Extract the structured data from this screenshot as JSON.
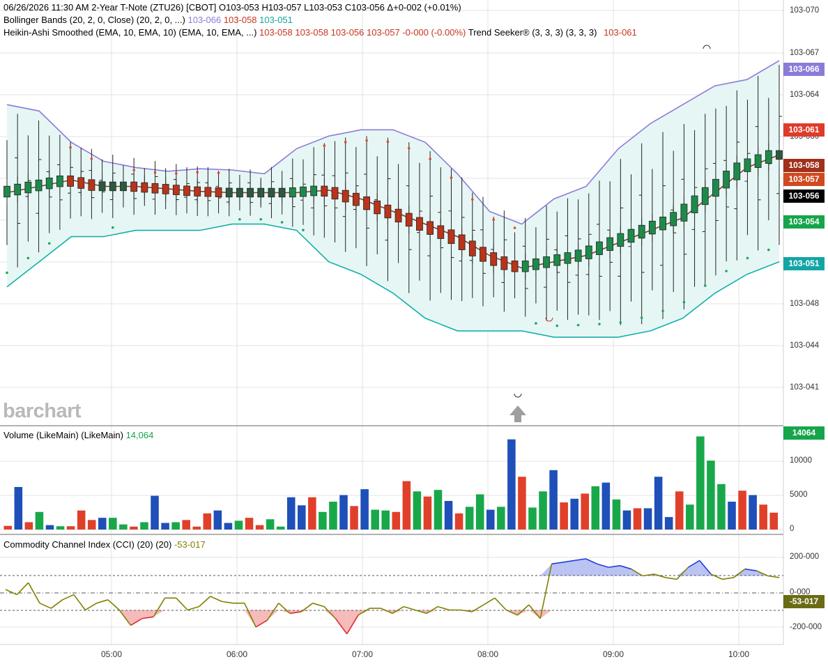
{
  "header": {
    "line1": "06/26/2026  11:30 AM 2-Year T-Note (ZTU26) [CBOT]  O103-053  H103-057  L103-053  C103-056  Δ+0-002 (+0.01%)",
    "bb_label": "Bollinger Bands (20, 2, 0, Close)  (20, 2, 0, ...)",
    "bb_upper": "103-066",
    "bb_mid": "103-058",
    "bb_lower": "103-051",
    "ha_label": "Heikin-Ashi Smoothed (EMA, 10, EMA, 10)  (EMA, 10, EMA, ...)",
    "ha_values": "103-058  103-058  103-056  103-057  -0-000 (-0.00%)",
    "ts_label": "Trend Seeker® (3, 3, 3)  (3, 3, 3)",
    "ts_value": "103-061"
  },
  "watermark": "barchart",
  "price_axis": {
    "ticks": [
      "103-070",
      "103-067",
      "103-064",
      "103-060",
      "103-057",
      "103-054",
      "103-051",
      "103-048",
      "103-044",
      "103-041"
    ],
    "boxes": [
      {
        "label": "103-066",
        "color": "#8a7cd8"
      },
      {
        "label": "103-061",
        "color": "#e03a2a"
      },
      {
        "label": "103-058",
        "color": "#a0301a"
      },
      {
        "label": "103-057",
        "color": "#d04a20"
      },
      {
        "label": "103-056",
        "color": "#000000"
      },
      {
        "label": "103-054",
        "color": "#16a54a"
      },
      {
        "label": "103-051",
        "color": "#13a5a5"
      }
    ]
  },
  "volume_panel": {
    "label": "Volume (LikeMain)  (LikeMain)",
    "value": "14,064",
    "box": "14064",
    "ticks": [
      "10000",
      "5000",
      "0"
    ]
  },
  "cci_panel": {
    "label": "Commodity Channel Index (CCI) (20)  (20)",
    "value": "-53-017",
    "box": "-53-017",
    "ticks": [
      "200-000",
      "0-000",
      "-200-000"
    ]
  },
  "x_axis": [
    "05:00",
    "06:00",
    "07:00",
    "08:00",
    "09:00",
    "10:00"
  ],
  "chart_data": [
    {
      "type": "line",
      "title": "2-Year T-Note (ZTU26) price with Bollinger Bands",
      "x": [
        "04:15",
        "04:30",
        "04:45",
        "05:00",
        "05:15",
        "05:30",
        "05:45",
        "06:00",
        "06:15",
        "06:30",
        "06:45",
        "07:00",
        "07:15",
        "07:30",
        "07:45",
        "08:00",
        "08:15",
        "08:30",
        "08:45",
        "09:00",
        "09:15",
        "09:30",
        "09:45",
        "10:00",
        "10:15"
      ],
      "series": [
        {
          "name": "Bollinger upper",
          "values": [
            103.0625,
            103.062,
            103.0595,
            103.058,
            103.0575,
            103.0572,
            103.0574,
            103.0573,
            103.057,
            103.059,
            103.06,
            103.0605,
            103.0605,
            103.0595,
            103.057,
            103.054,
            103.053,
            103.055,
            103.056,
            103.059,
            103.061,
            103.0625,
            103.064,
            103.0645,
            103.066
          ]
        },
        {
          "name": "Bollinger middle",
          "values": [
            103.0555,
            103.056,
            103.0565,
            103.056,
            103.056,
            103.0558,
            103.0556,
            103.0555,
            103.0555,
            103.0555,
            103.0557,
            103.055,
            103.054,
            103.053,
            103.052,
            103.0505,
            103.0495,
            103.05,
            103.0505,
            103.0515,
            103.0525,
            103.0535,
            103.0555,
            103.0575,
            103.0585
          ]
        },
        {
          "name": "Bollinger lower",
          "values": [
            103.048,
            103.05,
            103.052,
            103.052,
            103.0525,
            103.0525,
            103.0525,
            103.053,
            103.053,
            103.0525,
            103.05,
            103.049,
            103.0475,
            103.0455,
            103.0445,
            103.0445,
            103.0445,
            103.044,
            103.044,
            103.044,
            103.0445,
            103.0455,
            103.0475,
            103.049,
            103.05
          ]
        }
      ],
      "ylim": [
        103.04,
        103.07
      ]
    },
    {
      "type": "bar",
      "title": "Volume (LikeMain)",
      "values": [
        500,
        5800,
        1000,
        2400,
        600,
        450,
        450,
        2600,
        1300,
        1600,
        1600,
        700,
        400,
        1000,
        4600,
        900,
        1000,
        1300,
        400,
        2200,
        2600,
        900,
        1200,
        1600,
        600,
        1400,
        400,
        4400,
        3300,
        4400,
        2400,
        3800,
        4700,
        3200,
        5500,
        2700,
        2600,
        2400,
        6600,
        5200,
        4500,
        5400,
        3900,
        2200,
        3100,
        4800,
        2700,
        3100,
        12300,
        7200,
        3000,
        5200,
        8100,
        3700,
        4200,
        4900,
        5900,
        6400,
        4100,
        2600,
        2900,
        2900,
        7200,
        1700,
        5200,
        3400,
        12700,
        9400,
        6200,
        3800,
        5300,
        4700,
        3400,
        2300
      ],
      "ylim": [
        0,
        14064
      ]
    },
    {
      "type": "line",
      "title": "Commodity Channel Index (CCI) (20)",
      "values": [
        20,
        -10,
        60,
        -60,
        -90,
        -40,
        -10,
        -100,
        -60,
        -40,
        -100,
        -190,
        -150,
        -140,
        -30,
        -30,
        -100,
        -80,
        -20,
        -50,
        -60,
        -60,
        -200,
        -160,
        -60,
        -120,
        -110,
        -60,
        -80,
        -150,
        -240,
        -130,
        -90,
        -90,
        -120,
        -80,
        -100,
        -120,
        -80,
        -100,
        -100,
        -110,
        -70,
        -30,
        -100,
        -130,
        -70,
        -150,
        170,
        180,
        190,
        200,
        170,
        150,
        160,
        140,
        100,
        110,
        90,
        80,
        150,
        190,
        110,
        80,
        90,
        140,
        130,
        100,
        90
      ],
      "ylim": [
        -250,
        250
      ]
    }
  ]
}
